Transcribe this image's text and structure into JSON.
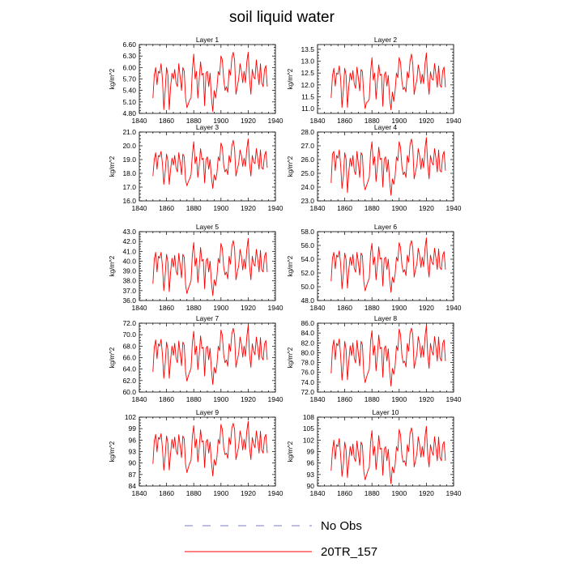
{
  "chart_data": {
    "type": "line",
    "title": "soil liquid water",
    "legend": {
      "placement": "bottom-center",
      "entries": [
        {
          "label": "No Obs",
          "color": "#7b7bbf",
          "dash": "dashed"
        },
        {
          "label": "20TR_157",
          "color": "#ff0000",
          "dash": "solid"
        }
      ]
    },
    "x": [
      1850,
      1851,
      1852,
      1853,
      1854,
      1855,
      1856,
      1857,
      1858,
      1859,
      1860,
      1861,
      1862,
      1863,
      1864,
      1865,
      1866,
      1867,
      1868,
      1869,
      1870,
      1871,
      1872,
      1873,
      1874,
      1875,
      1876,
      1877,
      1878,
      1879,
      1880,
      1881,
      1882,
      1883,
      1884,
      1885,
      1886,
      1887,
      1888,
      1889,
      1890,
      1891,
      1892,
      1893,
      1894,
      1895,
      1896,
      1897,
      1898,
      1899,
      1900,
      1901,
      1902,
      1903,
      1904,
      1905,
      1906,
      1907,
      1908,
      1909,
      1910,
      1911,
      1912,
      1913,
      1914,
      1915,
      1916,
      1917,
      1918,
      1919,
      1920,
      1921,
      1922,
      1923,
      1924,
      1925,
      1926,
      1927,
      1928,
      1929,
      1930,
      1931,
      1932,
      1933,
      1934
    ],
    "xlim": [
      1840,
      1940
    ],
    "xticks": [
      "1840",
      "1860",
      "1880",
      "1900",
      "1920",
      "1940"
    ],
    "grid": false,
    "panels": [
      {
        "title": "Layer 1",
        "ylabel": "kg/m^2",
        "ylim": [
          4.8,
          6.6
        ],
        "yticks": [
          "4.80",
          "5.10",
          "5.40",
          "5.70",
          "6.00",
          "6.30",
          "6.60"
        ],
        "values": [
          5.2,
          5.8,
          6.0,
          5.55,
          5.9,
          5.85,
          6.1,
          5.7,
          4.9,
          5.4,
          6.0,
          5.8,
          4.9,
          5.5,
          5.85,
          5.7,
          5.95,
          5.6,
          5.5,
          6.1,
          5.75,
          5.4,
          6.0,
          5.9,
          5.2,
          4.95,
          5.05,
          5.15,
          5.2,
          5.95,
          6.35,
          5.7,
          5.9,
          5.2,
          5.7,
          6.15,
          5.8,
          5.85,
          5.0,
          5.85,
          5.9,
          5.5,
          5.85,
          5.2,
          4.85,
          5.4,
          5.2,
          5.45,
          5.9,
          5.8,
          6.3,
          6.2,
          5.7,
          5.4,
          5.5,
          5.35,
          5.95,
          5.8,
          6.25,
          6.4,
          6.2,
          5.3,
          5.5,
          5.7,
          6.1,
          5.9,
          5.6,
          5.9,
          5.6,
          6.15,
          6.4,
          5.7,
          5.3,
          5.95,
          5.75,
          5.7,
          6.2,
          5.85,
          5.55,
          6.1,
          5.6,
          5.5,
          5.95,
          6.05,
          5.5
        ]
      },
      {
        "title": "Layer 2",
        "ylabel": "kg/m^2",
        "ylim": [
          10.8,
          13.7
        ],
        "yticks": [
          "11.0",
          "11.5",
          "12.0",
          "12.5",
          "13.0",
          "13.5"
        ],
        "values": [
          11.45,
          12.4,
          12.7,
          11.95,
          12.5,
          12.45,
          12.8,
          12.25,
          11.05,
          11.8,
          12.7,
          12.4,
          11.05,
          11.95,
          12.5,
          12.2,
          12.6,
          12.05,
          11.85,
          12.75,
          12.3,
          11.75,
          12.65,
          12.55,
          11.55,
          11.0,
          11.25,
          11.3,
          11.4,
          12.55,
          13.15,
          12.2,
          12.5,
          11.4,
          12.15,
          12.85,
          12.4,
          12.45,
          11.1,
          12.4,
          12.55,
          11.95,
          12.4,
          11.4,
          10.95,
          11.7,
          11.3,
          11.75,
          12.5,
          12.3,
          13.15,
          12.95,
          12.15,
          11.8,
          11.9,
          11.7,
          12.55,
          12.3,
          13.0,
          13.3,
          12.9,
          11.6,
          11.95,
          12.2,
          12.85,
          12.55,
          12.05,
          12.45,
          12.05,
          12.9,
          13.35,
          12.2,
          11.6,
          12.55,
          12.25,
          12.2,
          12.9,
          12.45,
          11.9,
          12.8,
          12.0,
          11.9,
          12.6,
          12.75,
          11.9
        ]
      },
      {
        "title": "Layer 3",
        "ylabel": "kg/m^2",
        "ylim": [
          16.0,
          21.0
        ],
        "yticks": [
          "16.0",
          "17.0",
          "18.0",
          "19.0",
          "20.0",
          "21.0"
        ],
        "values": [
          17.8,
          19.0,
          19.5,
          18.3,
          19.3,
          19.2,
          19.6,
          18.7,
          17.2,
          18.1,
          19.4,
          18.9,
          17.2,
          18.3,
          19.1,
          18.6,
          19.3,
          18.4,
          18.1,
          19.5,
          18.8,
          17.9,
          19.4,
          19.2,
          17.5,
          17.1,
          17.4,
          17.6,
          17.9,
          19.4,
          20.3,
          18.7,
          19.2,
          17.7,
          18.6,
          19.8,
          19.0,
          19.1,
          17.3,
          19.0,
          19.2,
          18.3,
          19.0,
          17.7,
          16.9,
          17.9,
          17.5,
          18.0,
          19.2,
          18.9,
          20.2,
          19.9,
          18.6,
          18.1,
          18.3,
          17.9,
          19.3,
          18.8,
          20.0,
          20.4,
          19.8,
          17.8,
          18.3,
          18.7,
          19.7,
          19.3,
          18.5,
          19.1,
          18.5,
          19.8,
          20.5,
          18.7,
          17.8,
          19.3,
          18.8,
          18.7,
          19.8,
          19.1,
          18.3,
          19.7,
          18.4,
          18.3,
          19.3,
          19.6,
          18.4
        ]
      },
      {
        "title": "Layer 4",
        "ylabel": "kg/m^2",
        "ylim": [
          23.0,
          28.0
        ],
        "yticks": [
          "23.0",
          "24.0",
          "25.0",
          "26.0",
          "27.0",
          "28.0"
        ],
        "values": [
          24.3,
          26.4,
          26.6,
          25.2,
          26.3,
          26.1,
          26.7,
          25.6,
          23.9,
          24.8,
          26.5,
          26.0,
          23.6,
          25.1,
          26.1,
          25.5,
          26.3,
          25.2,
          24.9,
          26.6,
          25.7,
          24.7,
          26.5,
          26.3,
          24.3,
          23.8,
          24.1,
          24.4,
          24.7,
          26.5,
          27.3,
          25.6,
          26.2,
          24.4,
          25.5,
          26.9,
          26.0,
          26.1,
          24.0,
          26.0,
          26.2,
          25.1,
          26.0,
          24.4,
          23.4,
          24.6,
          24.2,
          24.8,
          26.2,
          25.9,
          27.3,
          26.9,
          25.5,
          24.9,
          25.1,
          24.7,
          26.3,
          25.8,
          27.1,
          27.5,
          26.9,
          24.6,
          25.1,
          25.6,
          26.8,
          26.3,
          25.3,
          26.1,
          25.4,
          26.8,
          27.6,
          25.6,
          24.6,
          26.3,
          25.8,
          25.6,
          26.8,
          26.1,
          25.1,
          26.7,
          25.2,
          25.1,
          26.3,
          26.6,
          25.2
        ]
      },
      {
        "title": "Layer 5",
        "ylabel": "kg/m^2",
        "ylim": [
          36.0,
          43.0
        ],
        "yticks": [
          "36.0",
          "37.0",
          "38.0",
          "39.0",
          "40.0",
          "41.0",
          "42.0",
          "43.0"
        ],
        "values": [
          37.7,
          40.2,
          40.9,
          38.9,
          40.5,
          40.3,
          40.9,
          39.5,
          37.0,
          38.6,
          40.7,
          39.9,
          36.9,
          38.9,
          40.3,
          39.4,
          40.6,
          39.0,
          38.6,
          40.8,
          39.6,
          38.3,
          40.7,
          40.4,
          37.6,
          36.7,
          37.2,
          37.6,
          38.0,
          40.7,
          41.9,
          39.5,
          40.3,
          37.8,
          39.4,
          41.4,
          40.0,
          40.2,
          37.2,
          40.0,
          40.3,
          38.9,
          40.0,
          37.8,
          36.5,
          38.1,
          37.5,
          38.4,
          40.3,
          39.8,
          41.8,
          41.3,
          39.4,
          38.6,
          38.9,
          38.2,
          40.5,
          39.7,
          41.5,
          42.1,
          41.3,
          38.1,
          38.9,
          39.5,
          41.2,
          40.5,
          39.1,
          40.2,
          39.2,
          41.2,
          42.3,
          39.5,
          38.1,
          40.5,
          39.7,
          39.5,
          41.2,
          40.2,
          38.9,
          41.1,
          39.1,
          38.9,
          40.5,
          40.9,
          38.9
        ]
      },
      {
        "title": "Layer 6",
        "ylabel": "kg/m^2",
        "ylim": [
          48.0,
          58.0
        ],
        "yticks": [
          "48.0",
          "50.0",
          "52.0",
          "54.0",
          "56.0",
          "58.0"
        ],
        "values": [
          50.8,
          54.2,
          55.0,
          52.6,
          54.6,
          54.3,
          55.2,
          53.3,
          49.7,
          51.9,
          54.9,
          53.9,
          49.8,
          52.5,
          54.3,
          53.1,
          54.7,
          52.7,
          52.1,
          55.0,
          53.5,
          51.7,
          54.9,
          54.5,
          50.8,
          49.4,
          50.1,
          50.7,
          51.2,
          54.9,
          56.3,
          53.2,
          54.3,
          51.0,
          53.2,
          55.8,
          54.0,
          54.2,
          50.1,
          54.0,
          54.3,
          52.5,
          54.0,
          51.0,
          49.2,
          51.4,
          50.6,
          51.8,
          54.3,
          53.7,
          56.4,
          55.7,
          53.2,
          52.1,
          52.5,
          51.6,
          54.6,
          53.6,
          56.0,
          56.7,
          55.7,
          51.4,
          52.5,
          53.3,
          55.6,
          54.6,
          52.8,
          54.3,
          52.9,
          55.6,
          57.1,
          53.2,
          51.4,
          54.6,
          53.6,
          53.2,
          55.6,
          54.2,
          52.5,
          55.5,
          52.8,
          52.5,
          54.6,
          55.1,
          52.5
        ]
      },
      {
        "title": "Layer 7",
        "ylabel": "kg/m^2",
        "ylim": [
          60.0,
          72.0
        ],
        "yticks": [
          "60.0",
          "62.0",
          "64.0",
          "66.0",
          "68.0",
          "70.0",
          "72.0"
        ],
        "values": [
          63.5,
          67.8,
          69.1,
          65.8,
          68.4,
          68.0,
          69.2,
          66.5,
          62.4,
          65.0,
          68.7,
          67.4,
          62.4,
          65.6,
          68.0,
          66.4,
          68.5,
          65.9,
          65.1,
          68.9,
          66.8,
          64.6,
          68.7,
          68.2,
          63.5,
          61.9,
          62.8,
          63.5,
          64.1,
          68.7,
          70.6,
          66.5,
          68.0,
          63.9,
          66.5,
          69.8,
          67.6,
          67.8,
          62.8,
          67.6,
          68.0,
          65.6,
          67.6,
          63.8,
          61.3,
          64.3,
          63.3,
          64.7,
          68.0,
          67.2,
          70.8,
          69.9,
          66.5,
          65.1,
          65.6,
          64.5,
          68.4,
          67.1,
          70.2,
          71.1,
          69.9,
          64.3,
          65.6,
          66.7,
          69.6,
          68.4,
          66.1,
          68.0,
          66.2,
          69.6,
          71.6,
          66.5,
          64.3,
          68.4,
          67.1,
          66.5,
          69.6,
          67.8,
          65.6,
          69.5,
          66.1,
          65.6,
          68.4,
          69.0,
          65.6
        ]
      },
      {
        "title": "Layer 8",
        "ylabel": "kg/m^2",
        "ylim": [
          72.0,
          86.0
        ],
        "yticks": [
          "72.0",
          "74.0",
          "76.0",
          "78.0",
          "80.0",
          "82.0",
          "84.0",
          "86.0"
        ],
        "values": [
          75.8,
          81.1,
          82.6,
          78.6,
          81.9,
          81.4,
          82.8,
          79.4,
          74.4,
          77.6,
          82.3,
          80.6,
          74.5,
          78.3,
          81.4,
          79.4,
          82.0,
          78.9,
          77.9,
          82.5,
          79.9,
          77.3,
          82.3,
          81.6,
          75.8,
          73.9,
          75.0,
          75.9,
          76.6,
          82.3,
          84.5,
          79.5,
          81.4,
          76.3,
          79.5,
          83.6,
          80.8,
          81.1,
          75.0,
          80.8,
          81.4,
          78.3,
          80.8,
          76.2,
          73.2,
          76.8,
          75.6,
          77.3,
          81.4,
          80.4,
          84.8,
          83.7,
          79.5,
          77.9,
          78.3,
          77.1,
          81.9,
          80.3,
          84.0,
          85.0,
          83.7,
          76.8,
          78.3,
          79.7,
          83.3,
          81.9,
          79.0,
          81.4,
          79.1,
          83.3,
          85.5,
          79.5,
          76.8,
          81.9,
          80.3,
          79.5,
          83.3,
          81.1,
          78.3,
          83.2,
          79.0,
          78.3,
          81.9,
          82.6,
          78.3
        ]
      },
      {
        "title": "Layer 9",
        "ylabel": "kg/m^2",
        "ylim": [
          84,
          102
        ],
        "yticks": [
          "84",
          "87",
          "90",
          "93",
          "96",
          "99",
          "102"
        ],
        "values": [
          89.8,
          95.8,
          97.5,
          92.9,
          96.7,
          96.2,
          97.7,
          93.9,
          88.1,
          91.8,
          97.1,
          95.2,
          88.2,
          92.6,
          96.2,
          93.8,
          96.8,
          93.3,
          92.2,
          97.4,
          94.5,
          91.4,
          97.1,
          96.3,
          89.6,
          87.5,
          88.8,
          89.9,
          90.7,
          97.1,
          99.8,
          94.0,
          96.2,
          90.3,
          94.0,
          98.7,
          95.5,
          95.8,
          88.8,
          95.5,
          96.2,
          92.6,
          95.5,
          90.2,
          86.6,
          90.9,
          89.4,
          91.4,
          96.2,
          95.0,
          100.1,
          98.8,
          94.0,
          92.2,
          92.6,
          91.2,
          96.7,
          94.9,
          99.2,
          100.4,
          98.8,
          90.9,
          92.6,
          94.3,
          98.4,
          96.7,
          93.4,
          96.2,
          93.5,
          98.4,
          100.9,
          94.0,
          90.9,
          96.7,
          94.9,
          94.0,
          98.4,
          95.8,
          92.6,
          98.3,
          93.4,
          92.6,
          96.7,
          97.5,
          92.6
        ]
      },
      {
        "title": "Layer 10",
        "ylabel": "kg/m^2",
        "ylim": [
          90,
          108
        ],
        "yticks": [
          "90",
          "93",
          "96",
          "99",
          "102",
          "105",
          "108"
        ],
        "values": [
          94.0,
          99.5,
          102.0,
          97.0,
          100.8,
          100.3,
          102.4,
          98.0,
          92.5,
          95.8,
          101.5,
          99.3,
          92.2,
          96.6,
          100.3,
          97.9,
          101.0,
          97.3,
          96.4,
          101.8,
          98.6,
          95.4,
          101.5,
          100.6,
          93.9,
          91.6,
          92.8,
          94.0,
          94.8,
          101.5,
          104.5,
          98.0,
          100.3,
          94.3,
          98.0,
          103.2,
          99.6,
          99.9,
          92.8,
          99.6,
          100.3,
          96.6,
          99.6,
          94.2,
          90.6,
          95.0,
          93.4,
          95.5,
          100.3,
          99.1,
          104.8,
          103.4,
          98.0,
          96.2,
          96.6,
          95.2,
          100.8,
          99.0,
          103.8,
          105.2,
          103.4,
          95.0,
          96.6,
          98.4,
          102.9,
          100.8,
          97.5,
          100.3,
          97.6,
          102.9,
          105.6,
          98.0,
          95.0,
          100.8,
          99.0,
          98.0,
          102.9,
          99.9,
          96.6,
          102.8,
          97.5,
          96.6,
          100.8,
          101.6,
          96.6
        ]
      }
    ]
  }
}
